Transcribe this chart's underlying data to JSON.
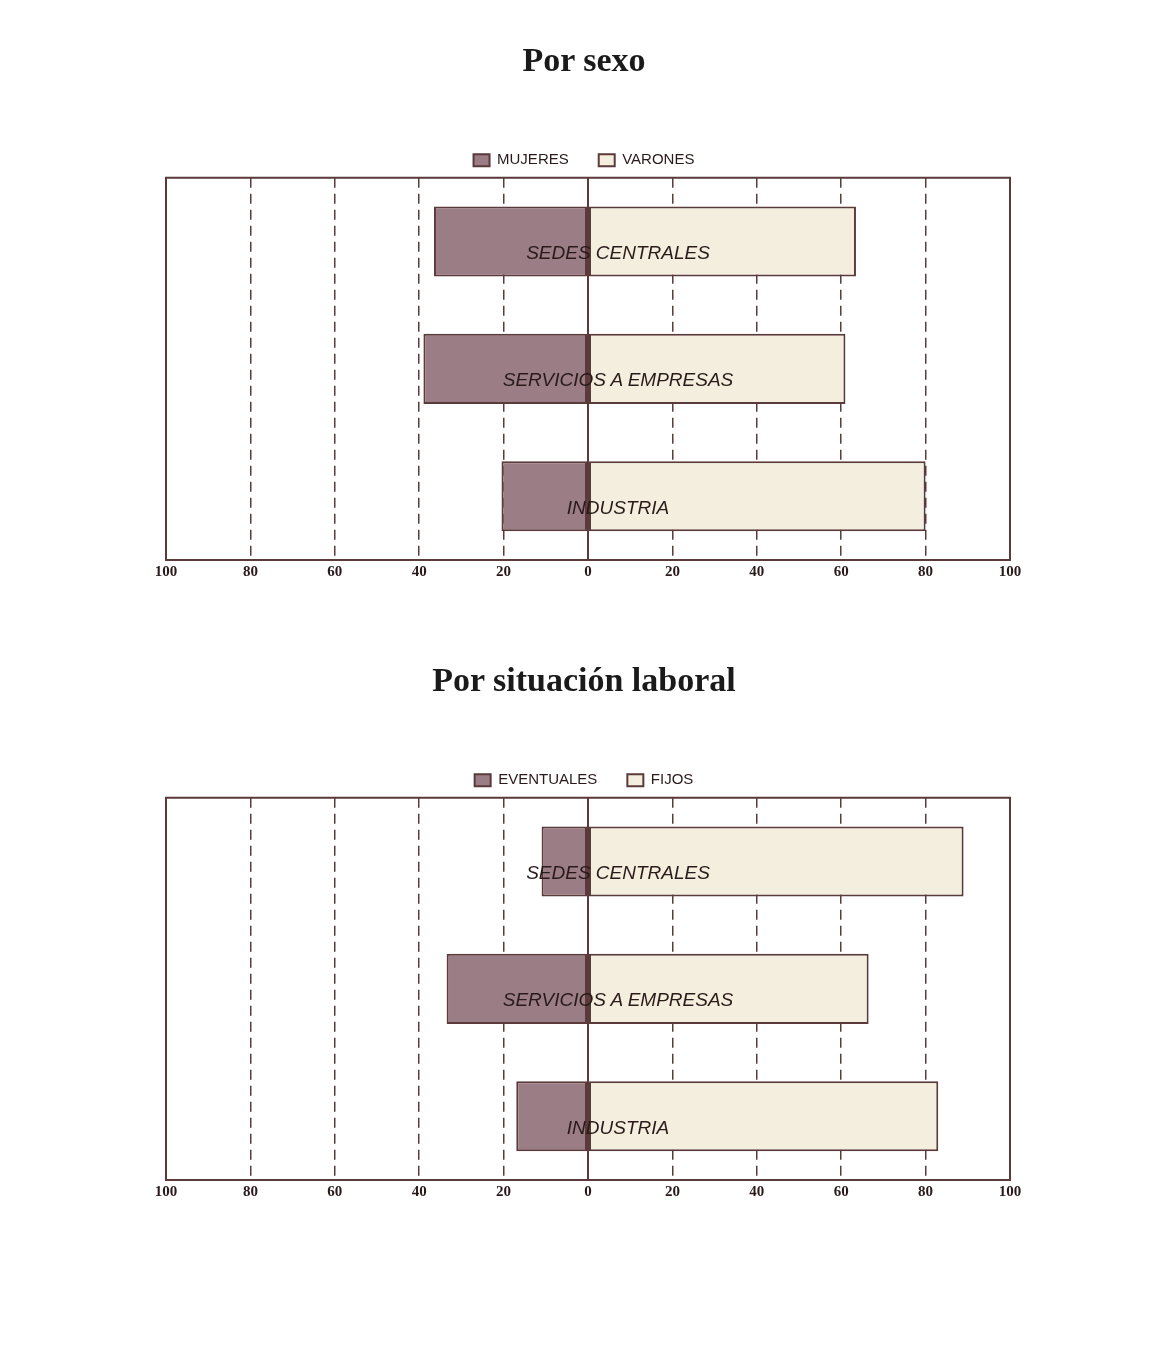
{
  "chart_data": [
    {
      "type": "bar",
      "title": "Por sexo",
      "orientation": "horizontal",
      "stacked": true,
      "categories": [
        "SEDES CENTRALES",
        "SERVICIOS A EMPRESAS",
        "INDUSTRIA"
      ],
      "series": [
        {
          "name": "MUJERES",
          "color": "#9b7d86",
          "values": [
            -36.5,
            -39,
            -20.5
          ]
        },
        {
          "name": "VARONES",
          "color": "#f3eedd",
          "values": [
            63.5,
            61,
            80
          ]
        }
      ],
      "xlim": [
        -100,
        100
      ],
      "xticks": [
        {
          "value": -100,
          "label": "100"
        },
        {
          "value": -80,
          "label": "80"
        },
        {
          "value": -60,
          "label": "60"
        },
        {
          "value": -40,
          "label": "40"
        },
        {
          "value": -20,
          "label": "20"
        },
        0,
        20,
        40,
        60,
        80,
        100
      ],
      "grid": "x",
      "legend": "top"
    },
    {
      "type": "bar",
      "title": "Por situación laboral",
      "orientation": "horizontal",
      "stacked": true,
      "categories": [
        "SEDES CENTRALES",
        "SERVICIOS A EMPRESAS",
        "INDUSTRIA"
      ],
      "series": [
        {
          "name": "EVENTUALES",
          "color": "#9b7d86",
          "values": [
            -11,
            -33.5,
            -17
          ]
        },
        {
          "name": "FIJOS",
          "color": "#f3eedd",
          "values": [
            89,
            66.5,
            83
          ]
        }
      ],
      "xlim": [
        -100,
        100
      ],
      "xticks": [
        {
          "value": -100,
          "label": "100"
        },
        {
          "value": -80,
          "label": "80"
        },
        {
          "value": -60,
          "label": "60"
        },
        {
          "value": -40,
          "label": "40"
        },
        {
          "value": -20,
          "label": "20"
        },
        0,
        20,
        40,
        60,
        80,
        100
      ],
      "grid": "x",
      "legend": "top"
    }
  ]
}
